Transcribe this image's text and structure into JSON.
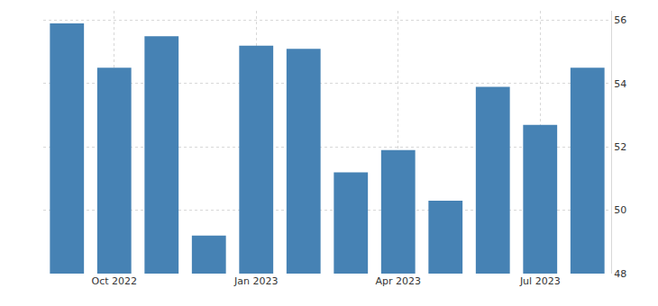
{
  "chart_data": {
    "type": "bar",
    "categories": [
      null,
      "Oct 2022",
      null,
      null,
      "Jan 2023",
      null,
      null,
      "Apr 2023",
      null,
      null,
      "Jul 2023",
      null
    ],
    "values": [
      55.9,
      54.5,
      55.5,
      49.2,
      55.2,
      55.1,
      51.2,
      51.9,
      50.3,
      53.9,
      52.7,
      54.5
    ],
    "color": "#4682b4",
    "ylim": [
      48,
      56.3
    ],
    "yticks": [
      48,
      50,
      52,
      54,
      56
    ],
    "grid": true
  }
}
